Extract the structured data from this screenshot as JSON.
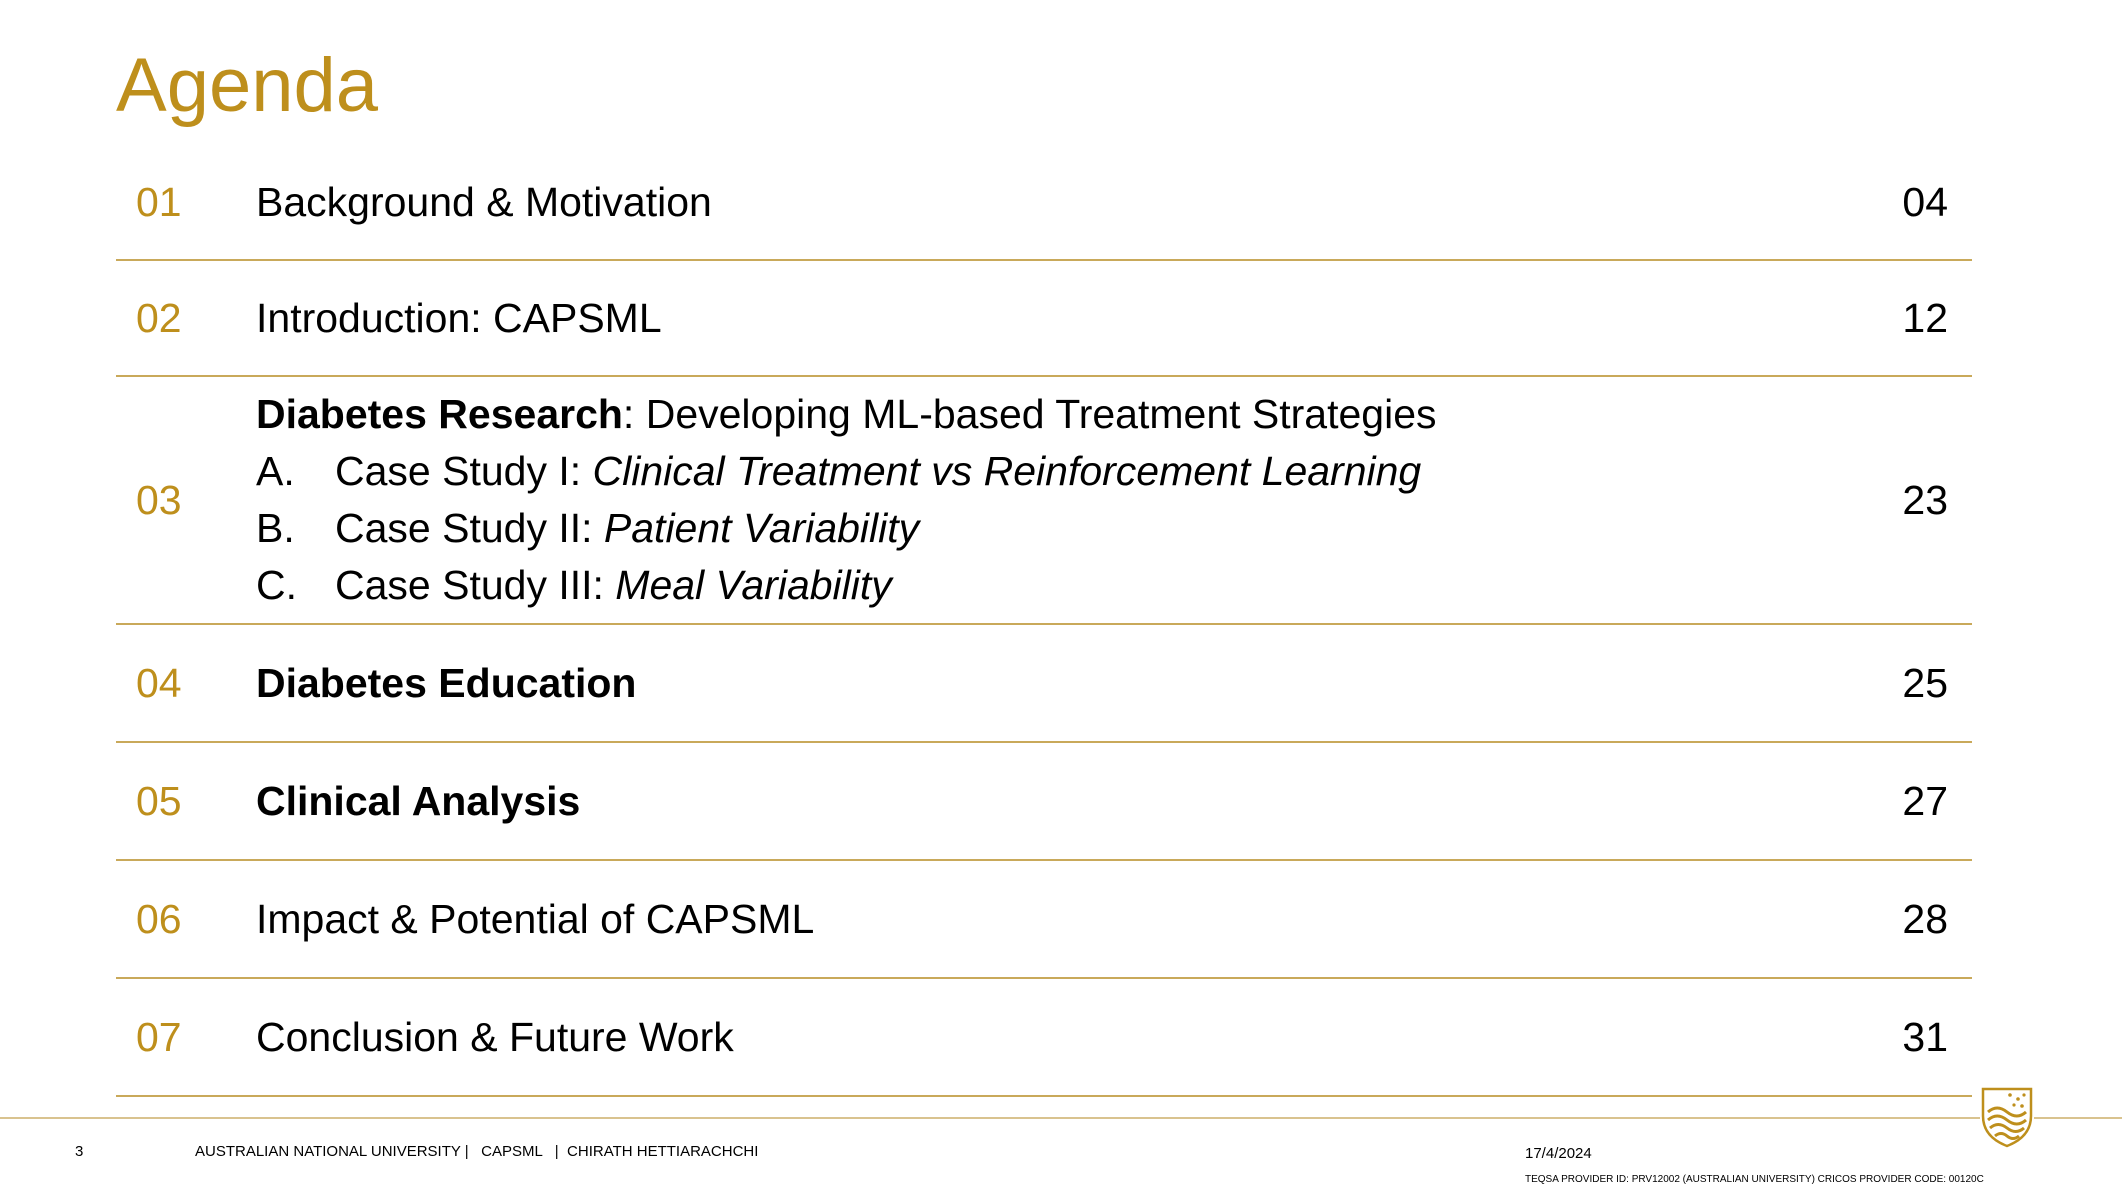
{
  "slide": {
    "title": "Agenda",
    "items": [
      {
        "num": "01",
        "label": "Background & Motivation",
        "page": "04"
      },
      {
        "num": "02",
        "label": "Introduction: CAPSML",
        "page": "12"
      },
      {
        "num": "03",
        "heading_bold": "Diabetes Research",
        "heading_rest": ": Developing ML-based Treatment Strategies",
        "subs": [
          {
            "letter": "A.",
            "prefix": "Case Study I: ",
            "italic": "Clinical Treatment vs Reinforcement Learning"
          },
          {
            "letter": "B.",
            "prefix": "Case Study II: ",
            "italic": "Patient Variability"
          },
          {
            "letter": "C.",
            "prefix": "Case Study III: ",
            "italic": "Meal Variability"
          }
        ],
        "page": "23"
      },
      {
        "num": "04",
        "label": "Diabetes Education",
        "page": "25"
      },
      {
        "num": "05",
        "label": "Clinical Analysis",
        "page": "27"
      },
      {
        "num": "06",
        "label": "Impact & Potential of CAPSML",
        "page": "28"
      },
      {
        "num": "07",
        "label": "Conclusion & Future Work",
        "page": "31"
      }
    ]
  },
  "footer": {
    "slide_number": "3",
    "org": "AUSTRALIAN NATIONAL UNIVERSITY |   CAPSML   |  CHIRATH HETTIARACHCHI",
    "date": "17/4/2024",
    "provider": "TEQSA PROVIDER ID: PRV12002 (AUSTRALIAN UNIVERSITY) CRICOS PROVIDER CODE: 00120C",
    "logo_icon": "anu-crest-icon"
  },
  "colors": {
    "accent": "#be8f1c",
    "rule": "#c9a95a",
    "text": "#000000"
  }
}
